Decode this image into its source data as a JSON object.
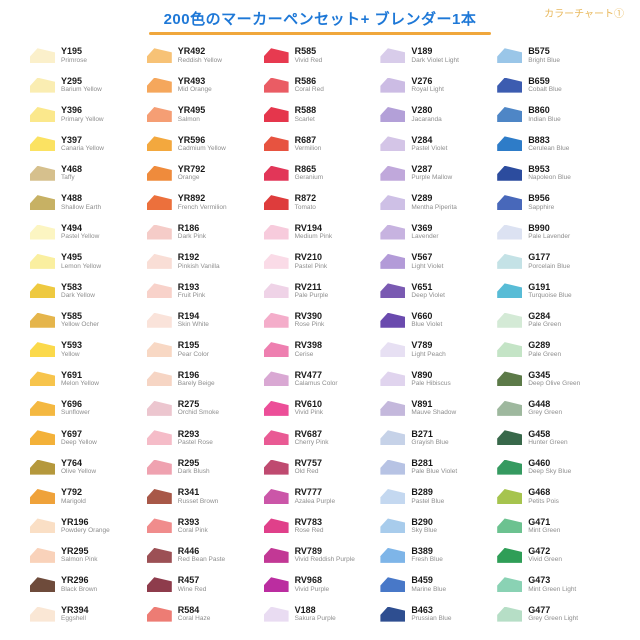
{
  "header": {
    "title": "200色のマーカーペンセット+ ブレンダー1本",
    "chart_label": "カラーチャート①",
    "title_color": "#1E78D7",
    "underline_color": "#F0A73C",
    "chart_label_color": "#E8B85C"
  },
  "columns": [
    [
      {
        "code": "Y195",
        "name": "Primrose",
        "hex": "#FBF0CB"
      },
      {
        "code": "Y295",
        "name": "Barium Yellow",
        "hex": "#FAEDB2"
      },
      {
        "code": "Y396",
        "name": "Primary Yellow",
        "hex": "#FBE88C"
      },
      {
        "code": "Y397",
        "name": "Canaria Yellow",
        "hex": "#FBE262"
      },
      {
        "code": "Y468",
        "name": "Taffy",
        "hex": "#D6C08D"
      },
      {
        "code": "Y488",
        "name": "Shallow Earth",
        "hex": "#C7B164"
      },
      {
        "code": "Y494",
        "name": "Pastel Yellow",
        "hex": "#FCF5C2"
      },
      {
        "code": "Y495",
        "name": "Lemon Yellow",
        "hex": "#FAEFA0"
      },
      {
        "code": "Y583",
        "name": "Dark Yellow",
        "hex": "#EEC940"
      },
      {
        "code": "Y585",
        "name": "Yellow Ocher",
        "hex": "#E5B54B"
      },
      {
        "code": "Y593",
        "name": "Yellow",
        "hex": "#FBD94B"
      },
      {
        "code": "Y691",
        "name": "Melon Yellow",
        "hex": "#F7C44C"
      },
      {
        "code": "Y696",
        "name": "Sunflower",
        "hex": "#F4B841"
      },
      {
        "code": "Y697",
        "name": "Deep Yellow",
        "hex": "#F3B139"
      },
      {
        "code": "Y764",
        "name": "Olive Yellow",
        "hex": "#B5983C"
      },
      {
        "code": "Y792",
        "name": "Marigold",
        "hex": "#EFA23A"
      },
      {
        "code": "YR196",
        "name": "Powdery Orange",
        "hex": "#FADFC5"
      },
      {
        "code": "YR295",
        "name": "Salmon Pink",
        "hex": "#F9D2BA"
      },
      {
        "code": "YR296",
        "name": "Black Brown",
        "hex": "#6E4B3B"
      },
      {
        "code": "YR394",
        "name": "Eggshell",
        "hex": "#FAE7D5"
      }
    ],
    [
      {
        "code": "YR492",
        "name": "Reddish Yellow",
        "hex": "#F7C276"
      },
      {
        "code": "YR493",
        "name": "Mid Orange",
        "hex": "#F5A75C"
      },
      {
        "code": "YR495",
        "name": "Salmon",
        "hex": "#F59E74"
      },
      {
        "code": "YR596",
        "name": "Cadmium Yellow",
        "hex": "#F3A83E"
      },
      {
        "code": "YR792",
        "name": "Orange",
        "hex": "#EF8B3C"
      },
      {
        "code": "YR892",
        "name": "French Vermilion",
        "hex": "#EC703C"
      },
      {
        "code": "R186",
        "name": "Dark Pink",
        "hex": "#F5CCC8"
      },
      {
        "code": "R192",
        "name": "Pinkish Vanilla",
        "hex": "#F9DED6"
      },
      {
        "code": "R193",
        "name": "Fruit Pink",
        "hex": "#F8D2CA"
      },
      {
        "code": "R194",
        "name": "Skin White",
        "hex": "#FAE3DA"
      },
      {
        "code": "R195",
        "name": "Pear Color",
        "hex": "#F8D8C4"
      },
      {
        "code": "R196",
        "name": "Barely Beige",
        "hex": "#F6D5C4"
      },
      {
        "code": "R275",
        "name": "Orchid Smoke",
        "hex": "#ECC6CF"
      },
      {
        "code": "R293",
        "name": "Pastel Rose",
        "hex": "#F5BCC8"
      },
      {
        "code": "R295",
        "name": "Dark Blush",
        "hex": "#EFA2B0"
      },
      {
        "code": "R341",
        "name": "Russet Brown",
        "hex": "#A85848"
      },
      {
        "code": "R393",
        "name": "Coral Pink",
        "hex": "#F08C8C"
      },
      {
        "code": "R446",
        "name": "Red Bean Paste",
        "hex": "#9C5055"
      },
      {
        "code": "R457",
        "name": "Wine Red",
        "hex": "#8E3C4C"
      },
      {
        "code": "R584",
        "name": "Coral Haze",
        "hex": "#ED7C74"
      }
    ],
    [
      {
        "code": "R585",
        "name": "Vivid Red",
        "hex": "#E73A50"
      },
      {
        "code": "R586",
        "name": "Coral Red",
        "hex": "#EA5C64"
      },
      {
        "code": "R588",
        "name": "Scarlet",
        "hex": "#E5364C"
      },
      {
        "code": "R687",
        "name": "Vermilion",
        "hex": "#E75340"
      },
      {
        "code": "R865",
        "name": "Geranium",
        "hex": "#E23658"
      },
      {
        "code": "R872",
        "name": "Tomato",
        "hex": "#DE3C3C"
      },
      {
        "code": "RV194",
        "name": "Medium Pink",
        "hex": "#F7CBDC"
      },
      {
        "code": "RV210",
        "name": "Pastel Pink",
        "hex": "#FADBE7"
      },
      {
        "code": "RV211",
        "name": "Pale Purple",
        "hex": "#EFD3E7"
      },
      {
        "code": "RV390",
        "name": "Rose Pink",
        "hex": "#F4ADCA"
      },
      {
        "code": "RV398",
        "name": "Cerise",
        "hex": "#EE7FB0"
      },
      {
        "code": "RV477",
        "name": "Calamus Color",
        "hex": "#D9A8D3"
      },
      {
        "code": "RV610",
        "name": "Vivid Pink",
        "hex": "#EC4E98"
      },
      {
        "code": "RV687",
        "name": "Cherry Pink",
        "hex": "#E95A94"
      },
      {
        "code": "RV757",
        "name": "Old Red",
        "hex": "#BF4A70"
      },
      {
        "code": "RV777",
        "name": "Azalea Purple",
        "hex": "#CB56A8"
      },
      {
        "code": "RV783",
        "name": "Rose Red",
        "hex": "#E0408A"
      },
      {
        "code": "RV789",
        "name": "Vivid Reddish Purple",
        "hex": "#C23895"
      },
      {
        "code": "RV968",
        "name": "Vivid Purple",
        "hex": "#BB2DA0"
      },
      {
        "code": "V188",
        "name": "Sakura Purple",
        "hex": "#E9DCF2"
      }
    ],
    [
      {
        "code": "V189",
        "name": "Dark Violet Light",
        "hex": "#D8CCEA"
      },
      {
        "code": "V276",
        "name": "Royal Light",
        "hex": "#CCBCE4"
      },
      {
        "code": "V280",
        "name": "Jacaranda",
        "hex": "#B3A0D8"
      },
      {
        "code": "V284",
        "name": "Pastel Violet",
        "hex": "#D4C5E7"
      },
      {
        "code": "V287",
        "name": "Purple Mallow",
        "hex": "#C0A8DB"
      },
      {
        "code": "V289",
        "name": "Mentha Piperita",
        "hex": "#CEC0E6"
      },
      {
        "code": "V369",
        "name": "Lavender",
        "hex": "#C7B3E0"
      },
      {
        "code": "V567",
        "name": "Light Violet",
        "hex": "#B39BD8"
      },
      {
        "code": "V651",
        "name": "Deep Violet",
        "hex": "#7A5AB2"
      },
      {
        "code": "V660",
        "name": "Blue Violet",
        "hex": "#6A4AAE"
      },
      {
        "code": "V789",
        "name": "Light Peach",
        "hex": "#E7E0F3"
      },
      {
        "code": "V890",
        "name": "Pale Hibiscus",
        "hex": "#E0D4EE"
      },
      {
        "code": "V891",
        "name": "Mauve Shadow",
        "hex": "#C4B8DC"
      },
      {
        "code": "B271",
        "name": "Grayish Blue",
        "hex": "#C6D2E8"
      },
      {
        "code": "B281",
        "name": "Pale Blue Violet",
        "hex": "#B7C3E4"
      },
      {
        "code": "B289",
        "name": "Pastel Blue",
        "hex": "#C4D8F0"
      },
      {
        "code": "B290",
        "name": "Sky Blue",
        "hex": "#A8CCEC"
      },
      {
        "code": "B389",
        "name": "Fresh Blue",
        "hex": "#7EB5E8"
      },
      {
        "code": "B459",
        "name": "Marine Blue",
        "hex": "#4878C8"
      },
      {
        "code": "B463",
        "name": "Prussian Blue",
        "hex": "#2E4E90"
      }
    ],
    [
      {
        "code": "B575",
        "name": "Bright Blue",
        "hex": "#9AC6E8"
      },
      {
        "code": "B659",
        "name": "Cobalt Blue",
        "hex": "#3C5CB0"
      },
      {
        "code": "B860",
        "name": "Indian Blue",
        "hex": "#4E86C6"
      },
      {
        "code": "B883",
        "name": "Cerulean Blue",
        "hex": "#2E7CC8"
      },
      {
        "code": "B953",
        "name": "Napoleon Blue",
        "hex": "#2C4C9E"
      },
      {
        "code": "B956",
        "name": "Sapphire",
        "hex": "#4868BA"
      },
      {
        "code": "B990",
        "name": "Pale Lavender",
        "hex": "#DCE2F2"
      },
      {
        "code": "G177",
        "name": "Porcelain Blue",
        "hex": "#C4E2E6"
      },
      {
        "code": "G191",
        "name": "Turquoise Blue",
        "hex": "#58BCD6"
      },
      {
        "code": "G284",
        "name": "Pale Green",
        "hex": "#D4EAD6"
      },
      {
        "code": "G289",
        "name": "Pale Green",
        "hex": "#C4E4C6"
      },
      {
        "code": "G345",
        "name": "Deep Olive Green",
        "hex": "#5C7A48"
      },
      {
        "code": "G448",
        "name": "Grey Green",
        "hex": "#9EB89E"
      },
      {
        "code": "G458",
        "name": "Hunter Green",
        "hex": "#38684A"
      },
      {
        "code": "G460",
        "name": "Deep Sky Blue",
        "hex": "#359A60"
      },
      {
        "code": "G468",
        "name": "Petits Pois",
        "hex": "#A6C44E"
      },
      {
        "code": "G471",
        "name": "Mint Green",
        "hex": "#6CC290"
      },
      {
        "code": "G472",
        "name": "Vivid Green",
        "hex": "#2F9E57"
      },
      {
        "code": "G473",
        "name": "Mint Green Light",
        "hex": "#8AD2B4"
      },
      {
        "code": "G477",
        "name": "Grey Green Light",
        "hex": "#B6DEC6"
      }
    ]
  ]
}
